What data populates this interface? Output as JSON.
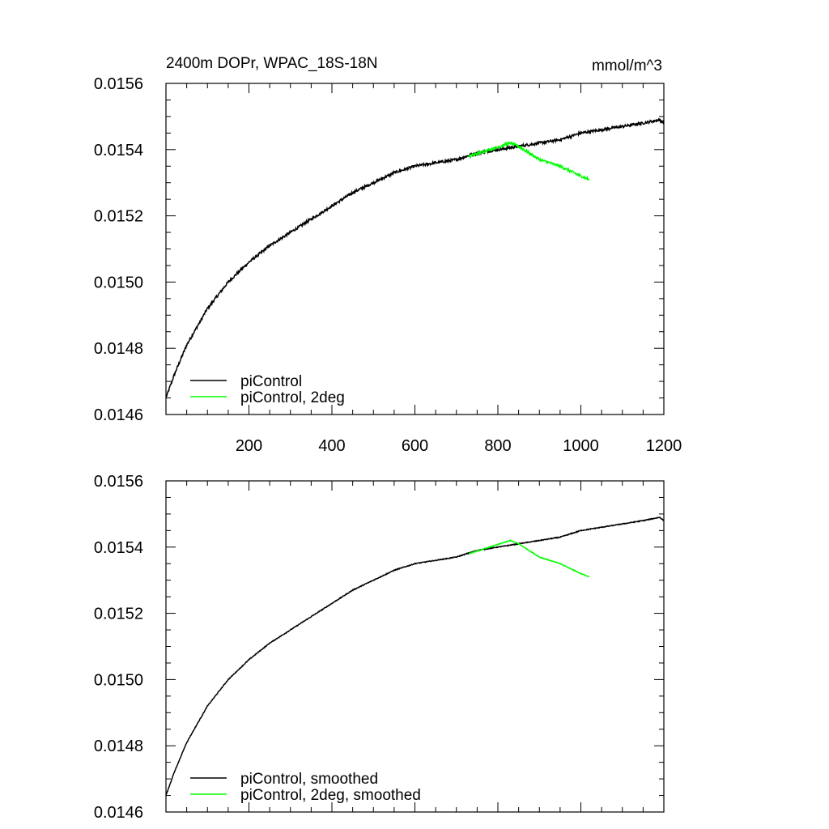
{
  "chart_data": [
    {
      "type": "line",
      "title": "2400m DOPr, WPAC_18S-18N",
      "units": "mmol/m^3",
      "xlim": [
        0,
        1200
      ],
      "ylim": [
        0.0146,
        0.0156
      ],
      "x_ticks": [
        "200",
        "400",
        "600",
        "800",
        "1000",
        "1200"
      ],
      "y_ticks": [
        "0.0146",
        "0.0148",
        "0.0150",
        "0.0152",
        "0.0154",
        "0.0156"
      ],
      "legend_position": "bottom-left",
      "series": [
        {
          "name": "piControl",
          "color": "#000000",
          "noise": 4e-06,
          "points": [
            [
              0,
              0.01465
            ],
            [
              20,
              0.01472
            ],
            [
              50,
              0.01481
            ],
            [
              100,
              0.01492
            ],
            [
              150,
              0.015
            ],
            [
              200,
              0.01506
            ],
            [
              250,
              0.01511
            ],
            [
              300,
              0.01515
            ],
            [
              350,
              0.01519
            ],
            [
              400,
              0.01523
            ],
            [
              450,
              0.01527
            ],
            [
              500,
              0.0153
            ],
            [
              550,
              0.01533
            ],
            [
              600,
              0.01535
            ],
            [
              650,
              0.01536
            ],
            [
              700,
              0.01537
            ],
            [
              750,
              0.01539
            ],
            [
              800,
              0.0154
            ],
            [
              850,
              0.01541
            ],
            [
              900,
              0.01542
            ],
            [
              950,
              0.01543
            ],
            [
              1000,
              0.01545
            ],
            [
              1050,
              0.01546
            ],
            [
              1100,
              0.01547
            ],
            [
              1150,
              0.01548
            ],
            [
              1190,
              0.01549
            ],
            [
              1200,
              0.01548
            ]
          ]
        },
        {
          "name": "piControl, 2deg",
          "color": "#00ff00",
          "noise": 4e-06,
          "points": [
            [
              730,
              0.01538
            ],
            [
              780,
              0.0154
            ],
            [
              830,
              0.01542
            ],
            [
              850,
              0.01541
            ],
            [
              900,
              0.01537
            ],
            [
              950,
              0.01535
            ],
            [
              1000,
              0.01532
            ],
            [
              1020,
              0.01531
            ]
          ]
        }
      ]
    },
    {
      "type": "line",
      "xlim": [
        0,
        1200
      ],
      "ylim": [
        0.0146,
        0.0156
      ],
      "y_ticks": [
        "0.0146",
        "0.0148",
        "0.0150",
        "0.0152",
        "0.0154",
        "0.0156"
      ],
      "legend_position": "bottom-left",
      "series": [
        {
          "name": "piControl, smoothed",
          "color": "#000000",
          "noise": 1.2e-06,
          "points": [
            [
              0,
              0.01465
            ],
            [
              20,
              0.01472
            ],
            [
              50,
              0.01481
            ],
            [
              100,
              0.01492
            ],
            [
              150,
              0.015
            ],
            [
              200,
              0.01506
            ],
            [
              250,
              0.01511
            ],
            [
              300,
              0.01515
            ],
            [
              350,
              0.01519
            ],
            [
              400,
              0.01523
            ],
            [
              450,
              0.01527
            ],
            [
              500,
              0.0153
            ],
            [
              550,
              0.01533
            ],
            [
              600,
              0.01535
            ],
            [
              650,
              0.01536
            ],
            [
              700,
              0.01537
            ],
            [
              750,
              0.01539
            ],
            [
              800,
              0.0154
            ],
            [
              850,
              0.01541
            ],
            [
              900,
              0.01542
            ],
            [
              950,
              0.01543
            ],
            [
              1000,
              0.01545
            ],
            [
              1050,
              0.01546
            ],
            [
              1100,
              0.01547
            ],
            [
              1150,
              0.01548
            ],
            [
              1190,
              0.01549
            ],
            [
              1200,
              0.01548
            ]
          ]
        },
        {
          "name": "piControl, 2deg, smoothed",
          "color": "#00ff00",
          "noise": 1e-06,
          "points": [
            [
              730,
              0.01538
            ],
            [
              780,
              0.0154
            ],
            [
              830,
              0.01542
            ],
            [
              850,
              0.01541
            ],
            [
              900,
              0.01537
            ],
            [
              950,
              0.01535
            ],
            [
              1000,
              0.01532
            ],
            [
              1020,
              0.01531
            ]
          ]
        }
      ]
    }
  ]
}
